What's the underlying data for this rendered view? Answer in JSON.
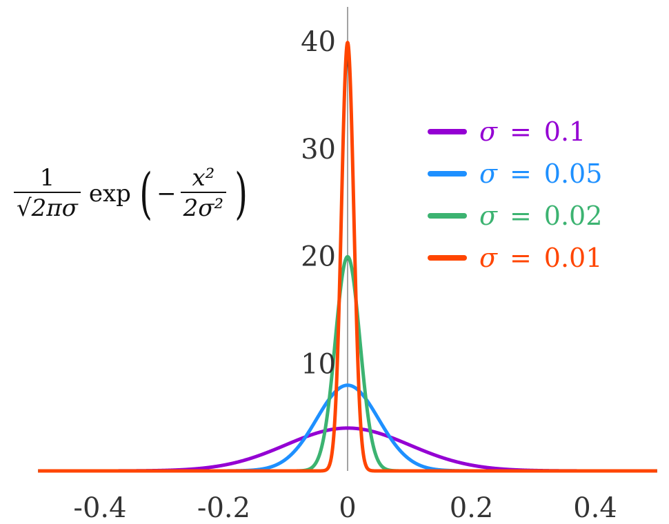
{
  "chart_data": {
    "type": "line",
    "title": "",
    "ylabel": {
      "numerator": "1",
      "denominator": "√2πσ",
      "func": "exp",
      "minus": "−",
      "inner_numerator": "x²",
      "inner_denominator": "2σ²"
    },
    "xlabel": "",
    "xlim": [
      -0.5,
      0.5
    ],
    "ylim": [
      0,
      43
    ],
    "xticks": [
      -0.4,
      -0.2,
      0,
      0.2,
      0.4
    ],
    "xtick_labels": [
      "-0.4",
      "-0.2",
      "0",
      "0.2",
      "0.4"
    ],
    "yticks": [
      10,
      20,
      30,
      40
    ],
    "ytick_labels": [
      "10",
      "20",
      "30",
      "40"
    ],
    "grid": false,
    "legend_position": "top-right",
    "function": "gaussian pdf with mean 0",
    "series": [
      {
        "name": "σ = 0.1",
        "sigma_label": "σ",
        "eq": "=",
        "value_label": "0.1",
        "sigma": 0.1,
        "color": "#9400D3"
      },
      {
        "name": "σ = 0.05",
        "sigma_label": "σ",
        "eq": "=",
        "value_label": "0.05",
        "sigma": 0.05,
        "color": "#1E90FF"
      },
      {
        "name": "σ = 0.02",
        "sigma_label": "σ",
        "eq": "=",
        "value_label": "0.02",
        "sigma": 0.02,
        "color": "#3CB371"
      },
      {
        "name": "σ = 0.01",
        "sigma_label": "σ",
        "eq": "=",
        "value_label": "0.01",
        "sigma": 0.01,
        "color": "#FF4500"
      }
    ]
  }
}
